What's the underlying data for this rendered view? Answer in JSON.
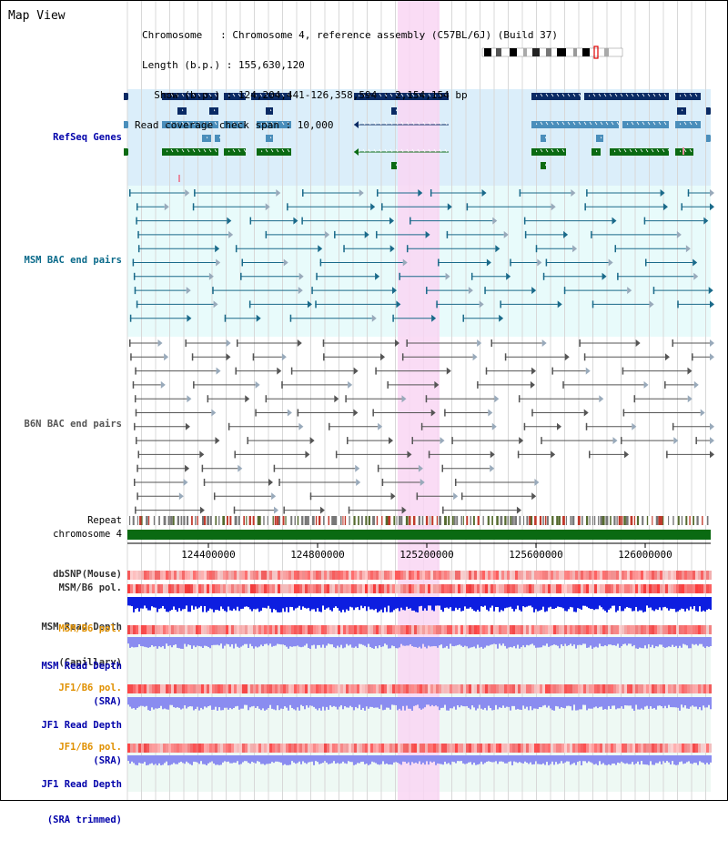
{
  "header": {
    "title": "Map View",
    "chromosome_line": "Chromosome   : Chromosome 4, reference assembly (C57BL/6J) (Build 37)",
    "length_line": "Length (b.p.) : 155,630,120",
    "show_line": "  Show (b.p.) : 124,204,441-126,358,594 : 2,154,154 bp",
    "coverage_line": "Read coverage check span : 10,000"
  },
  "tracks": {
    "refseq": "RefSeq Genes",
    "msm_bac": "MSM BAC end pairs",
    "b6n_bac": "B6N BAC end pairs",
    "repeat": "Repeat",
    "chromosome": "chromosome 4",
    "dbsnp": "dbSNP(Mouse)",
    "msm_b6_pol_1": "MSM/B6 pol.",
    "msm_depth_cap_1": "MSM Read Depth",
    "msm_depth_cap_2": "(Capillary)",
    "msm_b6_pol_2": "MSM/B6 pol.",
    "msm_depth_sra_1": "MSM Read Depth",
    "msm_depth_sra_2": "(SRA)",
    "jf1_b6_pol_1": "JF1/B6 pol.",
    "jf1_depth_sra_1": "JF1 Read Depth",
    "jf1_depth_sra_2": "(SRA)",
    "jf1_b6_pol_2": "JF1/B6 pol.",
    "jf1_depth_trim_1": "JF1 Read Depth",
    "jf1_depth_trim_2": "(SRA trimmed)"
  },
  "axis": {
    "ticks": [
      "124400000",
      "124800000",
      "125200000",
      "125600000",
      "126000000"
    ]
  },
  "colors": {
    "refseq_bg": "#dbeefa",
    "msm_bg": "#e8fbfb",
    "highlight": "#f9d6f3",
    "navy_gene": "#0a2a64",
    "steel_gene": "#4a8ebb",
    "green_gene": "#0a6a12",
    "msm_line": "#1a6a8a",
    "b6n_line": "#555555",
    "chromosome_bar": "#0a6a12",
    "depth_dark": "#0d1ee0",
    "depth_light": "#8a8cf0",
    "label_blue": "#0000aa",
    "label_teal": "#0a6a8a",
    "label_orange": "#e09000"
  }
}
